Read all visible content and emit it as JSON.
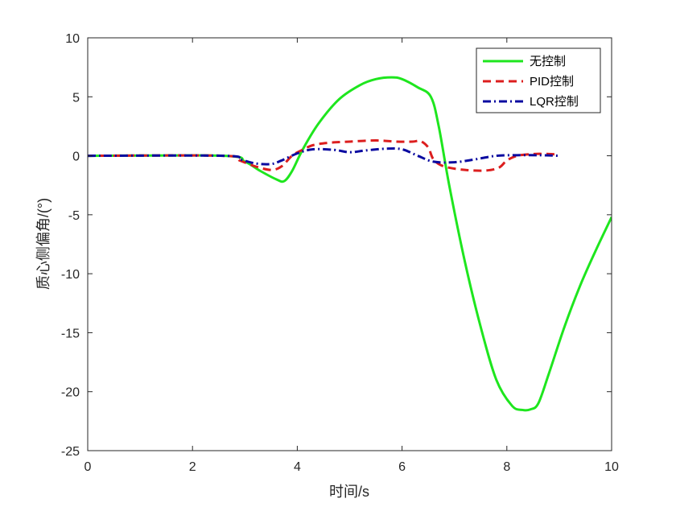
{
  "chart_data": {
    "type": "line",
    "xlabel": "时间/s",
    "ylabel": "质心侧偏角/(°)",
    "xlim": [
      0,
      10
    ],
    "ylim": [
      -25,
      10
    ],
    "xticks": [
      0,
      2,
      4,
      6,
      8,
      10
    ],
    "yticks": [
      10,
      5,
      0,
      -5,
      -10,
      -15,
      -20,
      -25
    ],
    "grid": false,
    "legend_position": "top-right",
    "series": [
      {
        "name": "无控制",
        "color": "#1ee61e",
        "dash": "solid",
        "x": [
          0,
          2.6,
          3.0,
          3.3,
          3.6,
          3.75,
          3.9,
          4.1,
          4.4,
          4.8,
          5.2,
          5.5,
          5.8,
          6.0,
          6.3,
          6.55,
          6.7,
          6.9,
          7.2,
          7.5,
          7.8,
          8.1,
          8.3,
          8.45,
          8.6,
          8.8,
          9.1,
          9.4,
          9.7,
          10.0
        ],
        "y": [
          0,
          0,
          -0.5,
          -1.3,
          -2.0,
          -2.15,
          -1.3,
          0.5,
          2.7,
          4.8,
          6.0,
          6.5,
          6.65,
          6.5,
          5.8,
          5.0,
          2.5,
          -2.5,
          -9.0,
          -14.5,
          -19.0,
          -21.2,
          -21.55,
          -21.5,
          -21.0,
          -18.5,
          -14.5,
          -11.0,
          -8.0,
          -5.2
        ]
      },
      {
        "name": "PID控制",
        "color": "#dc1e1e",
        "dash": "dashed",
        "x": [
          0,
          2.6,
          2.9,
          3.2,
          3.5,
          3.7,
          3.9,
          4.1,
          4.3,
          4.6,
          5.0,
          5.5,
          5.9,
          6.2,
          6.35,
          6.5,
          6.6,
          6.8,
          7.2,
          7.6,
          7.85,
          8.0,
          8.2,
          8.5,
          8.8,
          9.0
        ],
        "y": [
          0,
          0,
          -0.4,
          -0.9,
          -1.2,
          -0.9,
          0.0,
          0.5,
          0.9,
          1.1,
          1.2,
          1.3,
          1.2,
          1.2,
          1.25,
          0.7,
          -0.3,
          -0.9,
          -1.2,
          -1.25,
          -1.0,
          -0.4,
          0.0,
          0.15,
          0.15,
          0.1
        ]
      },
      {
        "name": "LQR控制",
        "color": "#0a0aa0",
        "dash": "dashdot",
        "x": [
          0,
          2.6,
          2.9,
          3.2,
          3.5,
          3.7,
          4.0,
          4.3,
          4.7,
          5.0,
          5.3,
          5.7,
          6.0,
          6.3,
          6.6,
          7.0,
          7.4,
          7.8,
          8.2,
          8.6,
          9.0
        ],
        "y": [
          0,
          0,
          -0.3,
          -0.65,
          -0.7,
          -0.4,
          0.2,
          0.55,
          0.5,
          0.3,
          0.45,
          0.6,
          0.55,
          0.0,
          -0.5,
          -0.55,
          -0.3,
          0.0,
          0.05,
          0.05,
          0.0
        ]
      }
    ]
  }
}
